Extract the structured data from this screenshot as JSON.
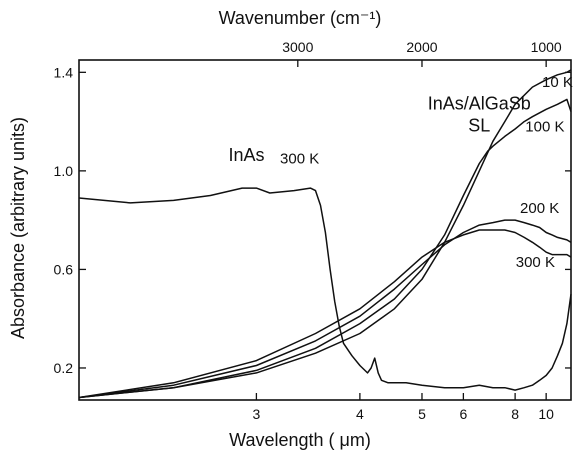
{
  "chart_data": {
    "type": "line",
    "title": "",
    "xlabel": "Wavelength ( μm)",
    "ylabel": "Absorbance (arbitrary units)",
    "x2label": "Wavenumber (cm⁻¹)",
    "x_scale": "reciprocal",
    "xlim": [
      2.1,
      12.5
    ],
    "ylim": [
      0.07,
      1.45
    ],
    "x_ticks": [
      {
        "value": 3,
        "label": "3"
      },
      {
        "value": 4,
        "label": "4"
      },
      {
        "value": 5,
        "label": "5"
      },
      {
        "value": 6,
        "label": "6"
      },
      {
        "value": 8,
        "label": "8"
      },
      {
        "value": 10,
        "label": "10"
      }
    ],
    "x2_ticks": [
      {
        "value": 3000,
        "label": "3000"
      },
      {
        "value": 2000,
        "label": "2000"
      },
      {
        "value": 1000,
        "label": "1000"
      }
    ],
    "y_ticks": [
      {
        "value": 0.2,
        "label": "0.2"
      },
      {
        "value": 0.6,
        "label": "0.6"
      },
      {
        "value": 1.0,
        "label": "1.0"
      },
      {
        "value": 1.4,
        "label": "1.4"
      }
    ],
    "grid": false,
    "legend": "none",
    "annotations": [
      {
        "text": "InAs/AlGaSb",
        "x": 6.5,
        "y": 1.25,
        "size": 18
      },
      {
        "text": "SL",
        "x": 6.5,
        "y": 1.16,
        "size": 18
      },
      {
        "text": "InAs",
        "x": 2.93,
        "y": 1.04,
        "size": 18
      },
      {
        "text": "300 K",
        "x": 3.35,
        "y": 1.03,
        "size": 15
      },
      {
        "text": "10 K",
        "x": 11.0,
        "y": 1.34,
        "size": 15
      },
      {
        "text": "100 K",
        "x": 9.9,
        "y": 1.16,
        "size": 15
      },
      {
        "text": "200 K",
        "x": 9.5,
        "y": 0.83,
        "size": 15
      },
      {
        "text": "300 K",
        "x": 9.2,
        "y": 0.61,
        "size": 15
      }
    ],
    "series": [
      {
        "name": "InAs 300 K",
        "x": [
          2.1,
          2.3,
          2.5,
          2.7,
          2.9,
          3.0,
          3.1,
          3.3,
          3.45,
          3.5,
          3.55,
          3.6,
          3.65,
          3.7,
          3.75,
          3.8,
          3.9,
          4.0,
          4.1,
          4.15,
          4.2,
          4.25,
          4.3,
          4.4,
          4.7,
          5.0,
          5.5,
          6.0,
          6.5,
          7.0,
          7.5,
          8.0,
          8.5,
          9.0,
          9.5,
          10.0,
          10.5,
          11.0,
          11.5,
          12.0,
          12.5
        ],
        "y": [
          0.89,
          0.87,
          0.88,
          0.9,
          0.93,
          0.93,
          0.91,
          0.92,
          0.93,
          0.92,
          0.86,
          0.75,
          0.6,
          0.47,
          0.37,
          0.3,
          0.25,
          0.21,
          0.18,
          0.2,
          0.24,
          0.18,
          0.15,
          0.14,
          0.14,
          0.13,
          0.12,
          0.12,
          0.13,
          0.12,
          0.12,
          0.11,
          0.12,
          0.13,
          0.15,
          0.17,
          0.2,
          0.25,
          0.3,
          0.38,
          0.5
        ]
      },
      {
        "name": "10 K",
        "x": [
          2.1,
          2.5,
          3.0,
          3.5,
          4.0,
          4.5,
          5.0,
          5.5,
          6.0,
          6.5,
          7.0,
          7.5,
          8.0,
          9.0,
          10.0,
          11.0,
          12.0,
          12.5
        ],
        "y": [
          0.08,
          0.12,
          0.18,
          0.26,
          0.34,
          0.44,
          0.56,
          0.71,
          0.86,
          1.0,
          1.12,
          1.2,
          1.27,
          1.34,
          1.37,
          1.39,
          1.4,
          1.41
        ]
      },
      {
        "name": "100 K",
        "x": [
          2.1,
          2.5,
          3.0,
          3.5,
          4.0,
          4.5,
          5.0,
          5.5,
          6.0,
          6.5,
          6.8,
          7.0,
          7.5,
          8.0,
          8.5,
          9.0,
          10.0,
          11.0,
          12.0,
          12.5
        ],
        "y": [
          0.08,
          0.12,
          0.19,
          0.28,
          0.38,
          0.48,
          0.6,
          0.74,
          0.9,
          1.03,
          1.08,
          1.1,
          1.14,
          1.17,
          1.2,
          1.22,
          1.25,
          1.27,
          1.29,
          1.24
        ]
      },
      {
        "name": "200 K",
        "x": [
          2.1,
          2.5,
          3.0,
          3.5,
          4.0,
          4.5,
          5.0,
          5.5,
          6.0,
          6.5,
          7.0,
          7.5,
          8.0,
          8.5,
          9.0,
          9.5,
          10.0,
          10.5,
          11.0,
          12.0,
          12.5
        ],
        "y": [
          0.08,
          0.13,
          0.21,
          0.31,
          0.41,
          0.52,
          0.62,
          0.7,
          0.75,
          0.78,
          0.79,
          0.8,
          0.8,
          0.79,
          0.78,
          0.77,
          0.75,
          0.74,
          0.73,
          0.72,
          0.71
        ]
      },
      {
        "name": "300 K",
        "x": [
          2.1,
          2.5,
          3.0,
          3.5,
          4.0,
          4.5,
          5.0,
          5.5,
          6.0,
          6.5,
          7.0,
          7.5,
          8.0,
          8.5,
          9.0,
          9.5,
          10.0,
          10.5,
          11.0,
          12.0,
          12.5
        ],
        "y": [
          0.08,
          0.14,
          0.23,
          0.34,
          0.44,
          0.55,
          0.65,
          0.71,
          0.74,
          0.76,
          0.76,
          0.76,
          0.75,
          0.73,
          0.71,
          0.69,
          0.67,
          0.66,
          0.66,
          0.66,
          0.65
        ]
      }
    ]
  }
}
